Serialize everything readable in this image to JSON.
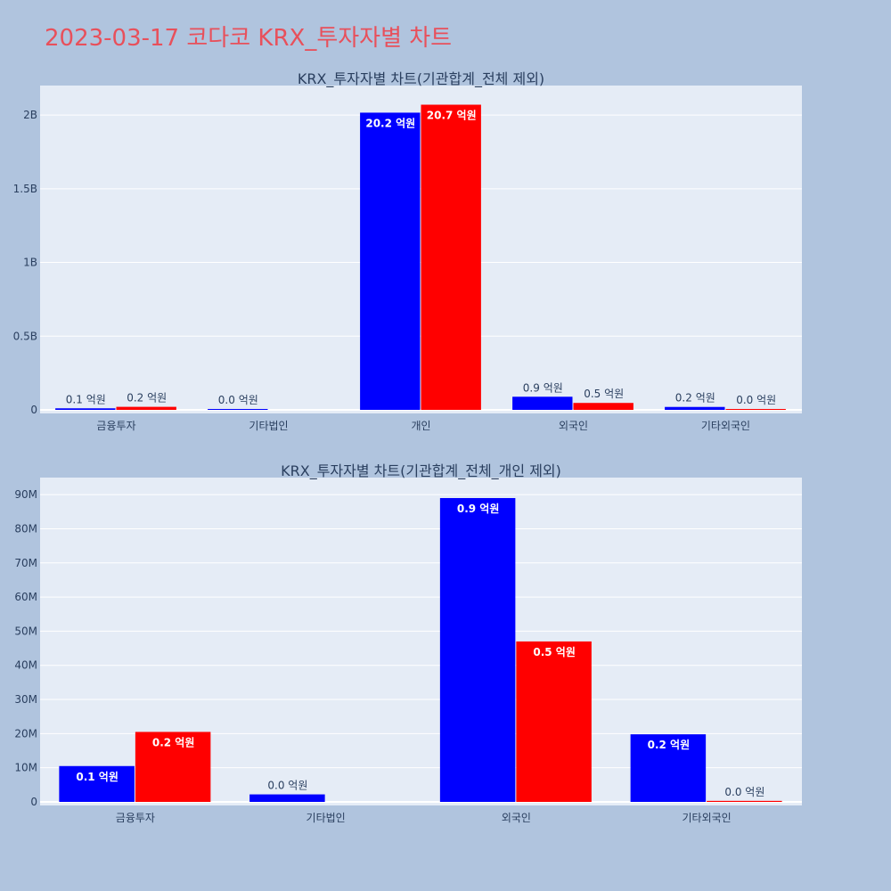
{
  "page": {
    "title": "2023-03-17 코다코 KRX_투자자별 차트"
  },
  "colors": {
    "background": "#b0c4de",
    "plot_bg": "#e5ecf6",
    "series_a": "#0000ff",
    "series_b": "#ff0000",
    "title": "#e8505b"
  },
  "chart_data": [
    {
      "type": "bar",
      "title": "KRX_투자자별 차트(기관합계_전체 제외)",
      "categories": [
        "금융투자",
        "기타법인",
        "개인",
        "외국인",
        "기타외국인"
      ],
      "series": [
        {
          "color": "#0000ff",
          "values": [
            10500000,
            2200000,
            2016000000,
            89000000,
            19800000
          ],
          "labels": [
            "0.1 억원",
            "0.0 억원",
            "20.2 억원",
            "0.9 억원",
            "0.2 억원"
          ]
        },
        {
          "color": "#ff0000",
          "values": [
            20500000,
            0,
            2070000000,
            47000000,
            300000
          ],
          "labels": [
            "0.2 억원",
            "",
            "20.7 억원",
            "0.5 억원",
            "0.0 억원"
          ]
        }
      ],
      "ylim": [
        0,
        2200000000
      ],
      "yticks": [
        0,
        500000000,
        1000000000,
        1500000000,
        2000000000
      ],
      "ytick_labels": [
        "0",
        "0.5B",
        "1B",
        "1.5B",
        "2B"
      ],
      "grid": true
    },
    {
      "type": "bar",
      "title": "KRX_투자자별 차트(기관합계_전체_개인 제외)",
      "categories": [
        "금융투자",
        "기타법인",
        "외국인",
        "기타외국인"
      ],
      "series": [
        {
          "color": "#0000ff",
          "values": [
            10500000,
            2200000,
            89000000,
            19800000
          ],
          "labels": [
            "0.1 억원",
            "0.0 억원",
            "0.9 억원",
            "0.2 억원"
          ]
        },
        {
          "color": "#ff0000",
          "values": [
            20500000,
            0,
            47000000,
            300000
          ],
          "labels": [
            "0.2 억원",
            "",
            "0.5 억원",
            "0.0 억원"
          ]
        }
      ],
      "ylim": [
        0,
        95000000
      ],
      "yticks": [
        0,
        10000000,
        20000000,
        30000000,
        40000000,
        50000000,
        60000000,
        70000000,
        80000000,
        90000000
      ],
      "ytick_labels": [
        "0",
        "10M",
        "20M",
        "30M",
        "40M",
        "50M",
        "60M",
        "70M",
        "80M",
        "90M"
      ],
      "grid": true
    }
  ]
}
